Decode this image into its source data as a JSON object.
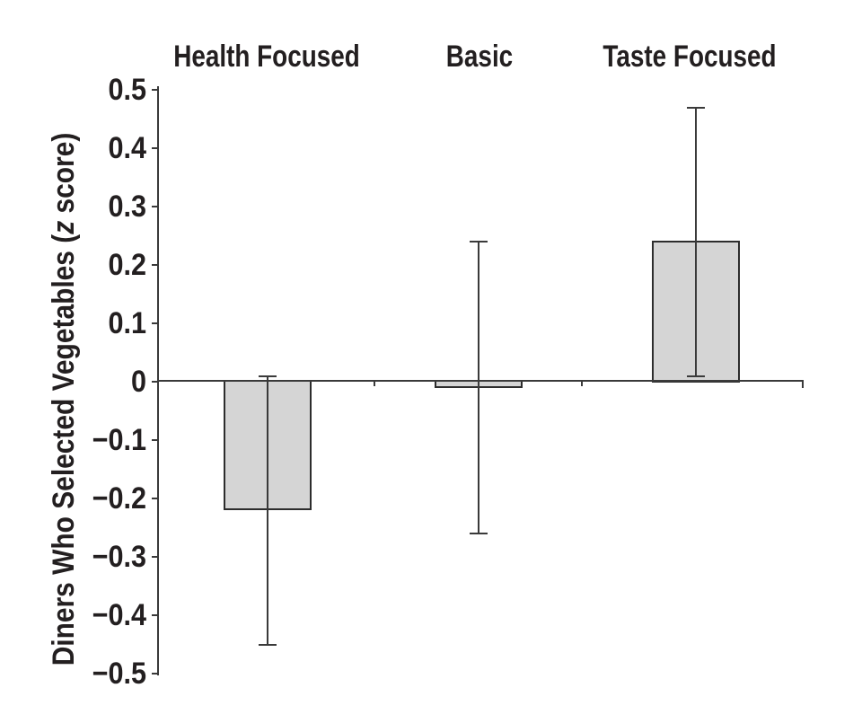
{
  "figure": {
    "ylabel_parts": {
      "pre": "Diners Who Selected Vegetables (",
      "italic": "z",
      "post": " score)"
    }
  },
  "chart_data": {
    "type": "bar",
    "title": "",
    "xlabel": "",
    "ylabel": "Diners Who Selected Vegetables (z score)",
    "categories": [
      "Health Focused",
      "Basic",
      "Taste Focused"
    ],
    "values": [
      -0.22,
      -0.01,
      0.24
    ],
    "error_low": [
      -0.45,
      -0.26,
      0.01
    ],
    "error_high": [
      0.01,
      0.24,
      0.47
    ],
    "ylim": [
      -0.5,
      0.5
    ],
    "ytick_step": 0.1,
    "ytick_labels": [
      "0.5",
      "0.4",
      "0.3",
      "0.2",
      "0.1",
      "0",
      "−0.1",
      "−0.2",
      "−0.3",
      "−0.4",
      "−0.5"
    ],
    "grid": false,
    "legend": false,
    "error_bars": true,
    "colors": {
      "bar_fill": "#d5d5d5",
      "bar_border": "#2d2d2d",
      "axis": "#3a3a3a",
      "text": "#231f20",
      "background": "#ffffff"
    }
  }
}
